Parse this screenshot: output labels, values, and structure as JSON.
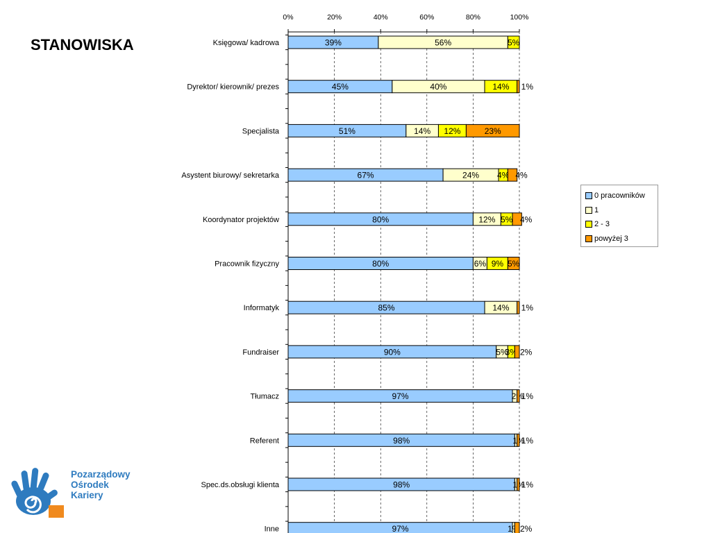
{
  "page": {
    "title": "STANOWISKA"
  },
  "logo": {
    "line1": "Pozarządowy",
    "line2": "Ośrodek",
    "line3": "Kariery"
  },
  "colors": {
    "series": [
      "#99ccff",
      "#ffffcc",
      "#ffff00",
      "#ff9900"
    ],
    "grid": "#000000",
    "logo_blue": "#2e7bbf",
    "logo_orange": "#f08a1e"
  },
  "chart_data": {
    "type": "bar",
    "orientation": "horizontal",
    "stacked": "percent",
    "title": "",
    "xlabel": "",
    "ylabel": "",
    "xlim": [
      0,
      100
    ],
    "x_ticks": [
      "0%",
      "20%",
      "40%",
      "60%",
      "80%",
      "100%"
    ],
    "grid": "vertical dashed",
    "legend_position": "right",
    "categories": [
      "Księgowa/ kadrowa",
      "Dyrektor/ kierownik/ prezes",
      "Specjalista",
      "Asystent biurowy/ sekretarka",
      "Koordynator projektów",
      "Pracownik fizyczny",
      "Informatyk",
      "Fundraiser",
      "Tłumacz",
      "Referent",
      "Spec.ds.obsługi klienta",
      "Inne"
    ],
    "series": [
      {
        "name": "0 pracowników",
        "values": [
          39,
          45,
          51,
          67,
          80,
          80,
          85,
          90,
          97,
          98,
          98,
          97
        ],
        "labels": [
          "39%",
          "45%",
          "51%",
          "67%",
          "80%",
          "80%",
          "85%",
          "90%",
          "97%",
          "98%",
          "98%",
          "97%"
        ]
      },
      {
        "name": "1",
        "values": [
          56,
          40,
          14,
          24,
          12,
          6,
          14,
          5,
          2,
          1,
          1,
          1
        ],
        "labels": [
          "56%",
          "40%",
          "14%",
          "24%",
          "12%",
          "6%",
          "14%",
          "5%",
          "2%",
          "1%",
          "1%",
          "1%"
        ]
      },
      {
        "name": "2 - 3",
        "values": [
          5,
          14,
          12,
          4,
          5,
          9,
          0,
          3,
          0,
          0,
          0,
          0
        ],
        "labels": [
          "5%",
          "14%",
          "12%",
          "4%",
          "5%",
          "9%",
          "",
          "3%",
          "",
          "",
          "",
          ""
        ]
      },
      {
        "name": "powyżej 3",
        "values": [
          0,
          1,
          23,
          4,
          4,
          5,
          1,
          2,
          1,
          1,
          1,
          2
        ],
        "labels": [
          "",
          "1%",
          "23%",
          "4%",
          "4%",
          "5%",
          "1%",
          "2%",
          "1%",
          "1%",
          "1%",
          "2%"
        ]
      }
    ]
  }
}
